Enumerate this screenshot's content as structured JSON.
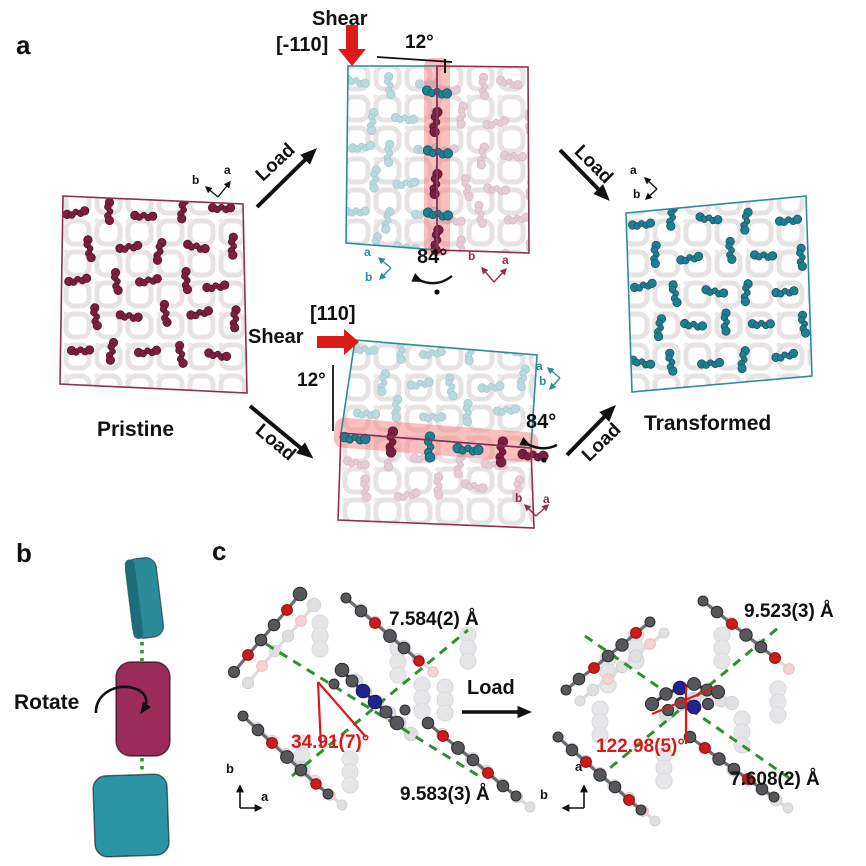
{
  "figure": {
    "panel_a": {
      "label": "a",
      "pristine_label": "Pristine",
      "transformed_label": "Transformed",
      "load_label": "Load",
      "shear_label": "Shear",
      "direction_top": "[-110]",
      "direction_mid": "[110]",
      "tilt_angle": "12°",
      "rotation_angle": "84°",
      "axis_a": "a",
      "axis_b": "b"
    },
    "panel_b": {
      "label": "b",
      "rotate_label": "Rotate"
    },
    "panel_c": {
      "label": "c",
      "load_label": "Load",
      "left": {
        "distance_top": "7.584(2) Å",
        "distance_bottom": "9.583(3) Å",
        "angle": "34.91(7)°"
      },
      "right": {
        "distance_top": "9.523(3) Å",
        "distance_bottom": "7.608(2) Å",
        "angle": "122.98(5)°"
      },
      "axis_a": "a",
      "axis_b": "b"
    },
    "colors": {
      "maroon_border": "#8d2f55",
      "maroon_molecule": "#7b1f41",
      "teal_border": "#2e8b9b",
      "teal_molecule": "#1f7f91",
      "ghost_teal": "#bcd9df",
      "ghost_pink": "#e6ccd6",
      "shear_red": "#dd1a1a",
      "highlight_red": "rgba(247,112,112,0.45)",
      "green_dash": "#2f8f31",
      "atom_gray": "#57575b",
      "atom_red": "#cf1a1a",
      "atom_blue": "#23238c",
      "red_text": "#d81a1a"
    }
  }
}
